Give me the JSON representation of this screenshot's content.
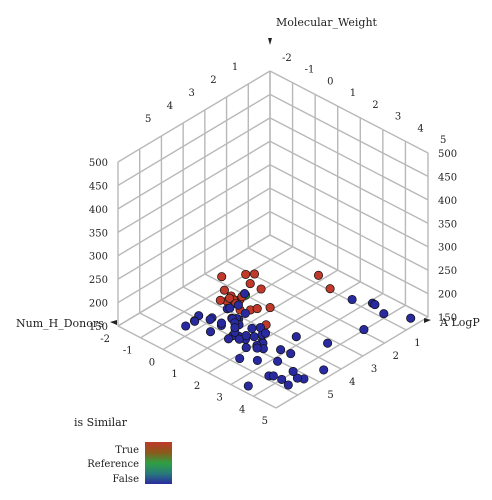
{
  "chart_data": {
    "type": "scatter",
    "title": "",
    "axes": {
      "z": {
        "label": "Molecular_Weight"
      },
      "y": {
        "label": "A LogP"
      },
      "x": {
        "label": "Num_H_Donors"
      }
    },
    "ticks": {
      "top_left": [
        "1",
        "2",
        "3",
        "4",
        "5"
      ],
      "top_right": [
        "-2",
        "-1",
        "0",
        "1",
        "2",
        "3",
        "4",
        "5"
      ],
      "left_vertical": [
        "500",
        "450",
        "400",
        "350",
        "300",
        "250",
        "200",
        "150"
      ],
      "right_vertical": [
        "500",
        "450",
        "400",
        "350",
        "300",
        "250",
        "200",
        "150"
      ],
      "bottom_left": [
        "-2",
        "-1",
        "0",
        "1",
        "2",
        "3",
        "4",
        "5"
      ],
      "bottom_right": [
        "1",
        "2",
        "3",
        "4",
        "5"
      ]
    },
    "legend": {
      "title": "is Similar",
      "entries": [
        "True",
        "Reference",
        "False"
      ],
      "colors": [
        "#c0392b",
        "#2ea043",
        "#2a2aa0"
      ]
    },
    "series": [
      {
        "name": "False",
        "color": "#2a2aa0",
        "points": [
          [
            5.1,
            -1.1,
            175
          ],
          [
            2.6,
            -1.0,
            155
          ],
          [
            4.1,
            -0.9,
            165
          ],
          [
            3.6,
            -0.9,
            175
          ],
          [
            3.9,
            -0.7,
            185
          ],
          [
            3.7,
            -0.4,
            135
          ],
          [
            1.3,
            1.8,
            110
          ],
          [
            1.4,
            1.9,
            130
          ],
          [
            4.1,
            3.5,
            135
          ],
          [
            3.1,
            4.3,
            130
          ],
          [
            4.6,
            3.3,
            155
          ],
          [
            2.8,
            2.5,
            150
          ],
          [
            2.4,
            2.9,
            165
          ],
          [
            4.9,
            2.7,
            165
          ],
          [
            4.0,
            3.7,
            150
          ],
          [
            4.6,
            3.6,
            165
          ],
          [
            2.3,
            3.6,
            190
          ],
          [
            2.0,
            2.6,
            180
          ],
          [
            2.4,
            3.3,
            190
          ],
          [
            3.4,
            2.4,
            190
          ],
          [
            3.0,
            3.5,
            185
          ],
          [
            4.4,
            2.0,
            190
          ],
          [
            3.0,
            3.8,
            200
          ],
          [
            4.5,
            4.6,
            195
          ],
          [
            4.7,
            3.9,
            190
          ],
          [
            4.3,
            4.6,
            190
          ],
          [
            2.2,
            3.2,
            200
          ],
          [
            3.2,
            4.0,
            205
          ],
          [
            2.3,
            3.9,
            205
          ],
          [
            3.6,
            4.4,
            200
          ],
          [
            2.9,
            3.3,
            210
          ],
          [
            3.2,
            4.8,
            205
          ],
          [
            4.3,
            4.2,
            210
          ],
          [
            2.7,
            4.3,
            220
          ],
          [
            3.2,
            4.5,
            220
          ],
          [
            1.9,
            3.5,
            220
          ],
          [
            4.4,
            3.7,
            215
          ],
          [
            2.5,
            4.4,
            225
          ],
          [
            2.0,
            3.7,
            230
          ],
          [
            2.4,
            4.0,
            235
          ],
          [
            2.6,
            4.4,
            235
          ],
          [
            2.1,
            3.4,
            235
          ],
          [
            2.1,
            4.0,
            240
          ],
          [
            3.0,
            4.3,
            235
          ],
          [
            1.7,
            3.3,
            240
          ],
          [
            2.1,
            4.5,
            240
          ],
          [
            2.6,
            4.4,
            245
          ],
          [
            1.8,
            3.8,
            250
          ],
          [
            2.5,
            4.3,
            250
          ],
          [
            2.2,
            4.6,
            250
          ],
          [
            1.4,
            3.5,
            230
          ],
          [
            2.8,
            4.9,
            240
          ],
          [
            1.3,
            4.1,
            225
          ],
          [
            1.6,
            4.5,
            240
          ],
          [
            2.0,
            4.9,
            235
          ],
          [
            0.9,
            4.3,
            225
          ],
          [
            1.1,
            4.7,
            230
          ],
          [
            1.0,
            5.0,
            225
          ],
          [
            1.4,
            5.0,
            245
          ],
          [
            1.3,
            2.6,
            235
          ]
        ]
      },
      {
        "name": "True",
        "color": "#c0392b",
        "points": [
          [
            1.4,
            -0.7,
            185
          ],
          [
            2.3,
            -0.3,
            190
          ],
          [
            1.0,
            1.3,
            125
          ],
          [
            0.6,
            0.7,
            135
          ],
          [
            0.6,
            1.6,
            155
          ],
          [
            0.3,
            0.8,
            170
          ],
          [
            0.2,
            1.2,
            190
          ],
          [
            0.8,
            1.5,
            160
          ],
          [
            0.2,
            1.0,
            205
          ],
          [
            0.1,
            1.3,
            210
          ],
          [
            0.4,
            1.9,
            180
          ],
          [
            0.6,
            2.1,
            190
          ],
          [
            0.6,
            2.4,
            200
          ],
          [
            1.1,
            2.6,
            195
          ],
          [
            0.5,
            2.7,
            225
          ],
          [
            -0.1,
            2.2,
            225
          ],
          [
            0.9,
            3.0,
            220
          ],
          [
            0.8,
            3.2,
            225
          ],
          [
            1.2,
            3.0,
            230
          ],
          [
            1.4,
            3.4,
            250
          ],
          [
            1.3,
            3.0,
            225
          ],
          [
            1.6,
            3.5,
            215
          ],
          [
            0.7,
            2.6,
            215
          ],
          [
            0.8,
            2.2,
            205
          ]
        ]
      },
      {
        "name": "Reference",
        "color": "#2ea043",
        "points": [
          [
            -0.2,
            1.0,
            150
          ]
        ]
      }
    ]
  }
}
